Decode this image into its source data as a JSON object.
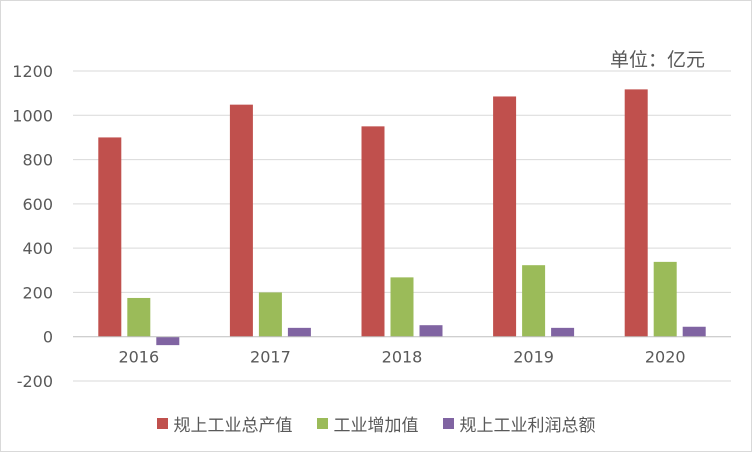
{
  "chart_data": {
    "type": "bar",
    "unit_label": "单位：亿元",
    "categories": [
      "2016",
      "2017",
      "2018",
      "2019",
      "2020"
    ],
    "series": [
      {
        "name": "规上工业总产值",
        "color": "#c0504d",
        "values": [
          900,
          1048,
          950,
          1085,
          1117
        ]
      },
      {
        "name": "工业增加值",
        "color": "#9bbb59",
        "values": [
          175,
          200,
          268,
          323,
          338
        ]
      },
      {
        "name": "规上工业利润总额",
        "color": "#8064a2",
        "values": [
          -38,
          40,
          52,
          40,
          45
        ]
      }
    ],
    "ylim": [
      -200,
      1200
    ],
    "yticks": [
      -200,
      0,
      200,
      400,
      600,
      800,
      1000,
      1200
    ],
    "grid": true,
    "legend": "bottom"
  }
}
